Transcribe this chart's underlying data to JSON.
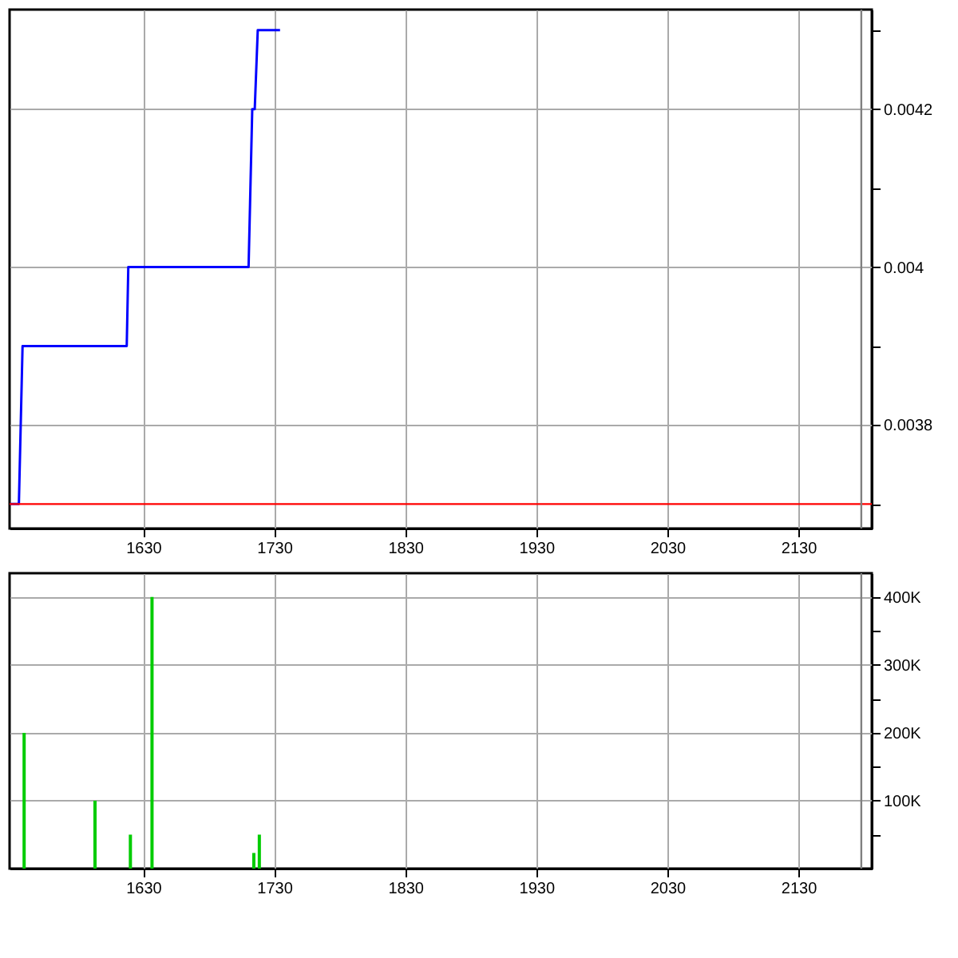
{
  "chart_data": [
    {
      "type": "line",
      "x": [
        1528.8,
        1535.1,
        1537.9,
        1617.4,
        1618.6,
        1710.4,
        1713.2,
        1715.1,
        1717.4,
        1734.4
      ],
      "series": [
        {
          "color": "#0000ff",
          "values": [
            0.0037,
            0.0037,
            0.0039,
            0.0039,
            0.004,
            0.004,
            0.0042,
            0.0042,
            0.0043,
            0.0043
          ]
        }
      ],
      "xlim": [
        1528,
        2186
      ],
      "ylim": [
        0.003669,
        0.004326
      ],
      "xticks": [
        1630,
        1730,
        1830,
        1930,
        2030,
        2130
      ],
      "yticks": [
        {
          "value": 0.0037,
          "label": null
        },
        0.0038,
        {
          "value": 0.0039,
          "label": null
        },
        0.004,
        {
          "value": 0.0041,
          "label": null
        },
        0.0042,
        {
          "value": 0.0043,
          "label": null
        }
      ],
      "ref_lines": [
        {
          "axis": "y",
          "value": 0.0037,
          "color": "#ff0000"
        },
        {
          "axis": "x",
          "value": 2178,
          "color": "#808080"
        }
      ],
      "grid": true
    },
    {
      "type": "bar",
      "x": [
        1539.1,
        1593.2,
        1620.2,
        1636.7,
        1714.4,
        1718.6
      ],
      "series": [
        {
          "color": "#00cc00",
          "values": [
            200000,
            100000,
            50000,
            400000,
            23000,
            50000
          ]
        }
      ],
      "xlim": [
        1528,
        2186
      ],
      "ylim": [
        0,
        435000
      ],
      "xticks": [
        1630,
        1730,
        1830,
        1930,
        2030,
        2130
      ],
      "yticks": [
        {
          "value": 50000,
          "label": null
        },
        {
          "value": 100000,
          "label": "100K"
        },
        {
          "value": 150000,
          "label": null
        },
        {
          "value": 200000,
          "label": "200K"
        },
        {
          "value": 250000,
          "label": null
        },
        {
          "value": 300000,
          "label": "300K"
        },
        {
          "value": 350000,
          "label": null
        },
        {
          "value": 400000,
          "label": "400K"
        }
      ],
      "ref_lines": [
        {
          "axis": "x",
          "value": 2178,
          "color": "#808080"
        }
      ],
      "grid": true
    }
  ]
}
